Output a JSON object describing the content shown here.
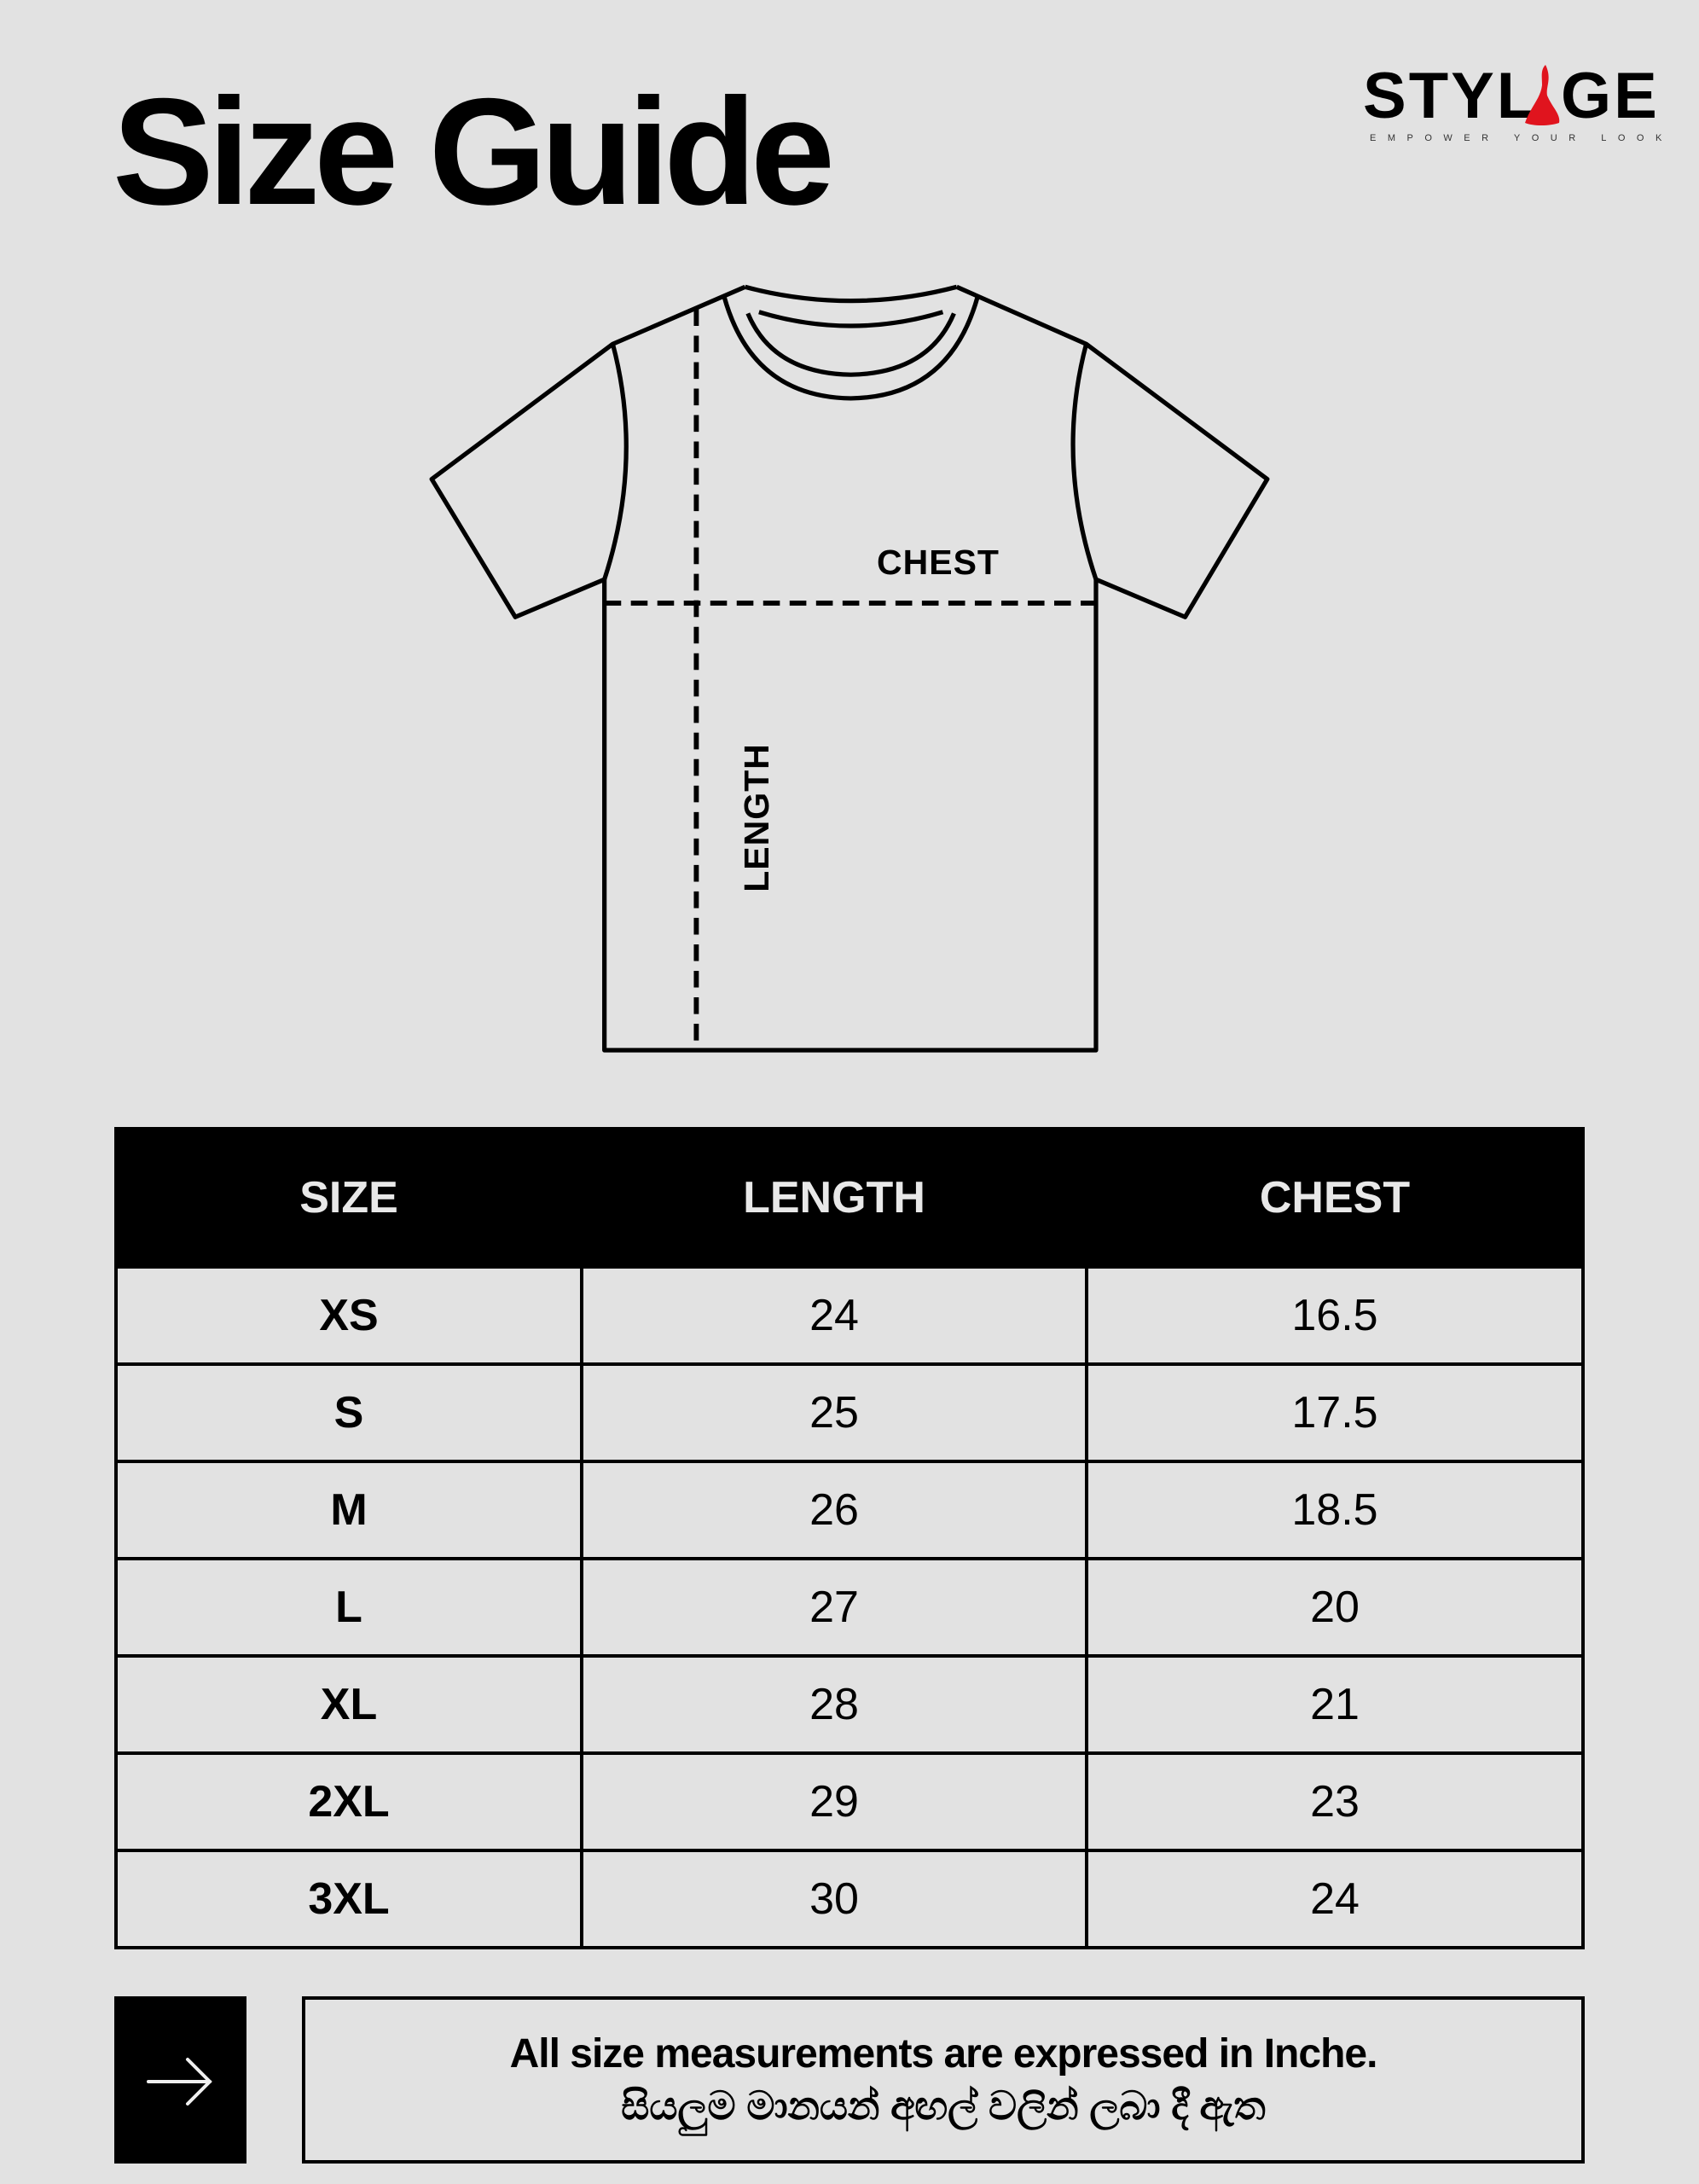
{
  "page": {
    "title": "Size Guide"
  },
  "logo": {
    "wordmark": "STYLAGE",
    "tagline": "EMPOWER YOUR LOOK",
    "accent_color": "#e0141e"
  },
  "diagram": {
    "chest_label": "CHEST",
    "length_label": "LENGTH"
  },
  "table": {
    "headers": [
      "SIZE",
      "LENGTH",
      "CHEST"
    ],
    "rows": [
      {
        "size": "XS",
        "length": "24",
        "chest": "16.5"
      },
      {
        "size": "S",
        "length": "25",
        "chest": "17.5"
      },
      {
        "size": "M",
        "length": "26",
        "chest": "18.5"
      },
      {
        "size": "L",
        "length": "27",
        "chest": "20"
      },
      {
        "size": "XL",
        "length": "28",
        "chest": "21"
      },
      {
        "size": "2XL",
        "length": "29",
        "chest": "23"
      },
      {
        "size": "3XL",
        "length": "30",
        "chest": "24"
      }
    ]
  },
  "note": {
    "icon": "arrow-right-icon",
    "english": "All size measurements are expressed in Inche.",
    "sinhala": "සියලුම මානයන් අඟල් වලින් ලබා දී ඇත"
  }
}
